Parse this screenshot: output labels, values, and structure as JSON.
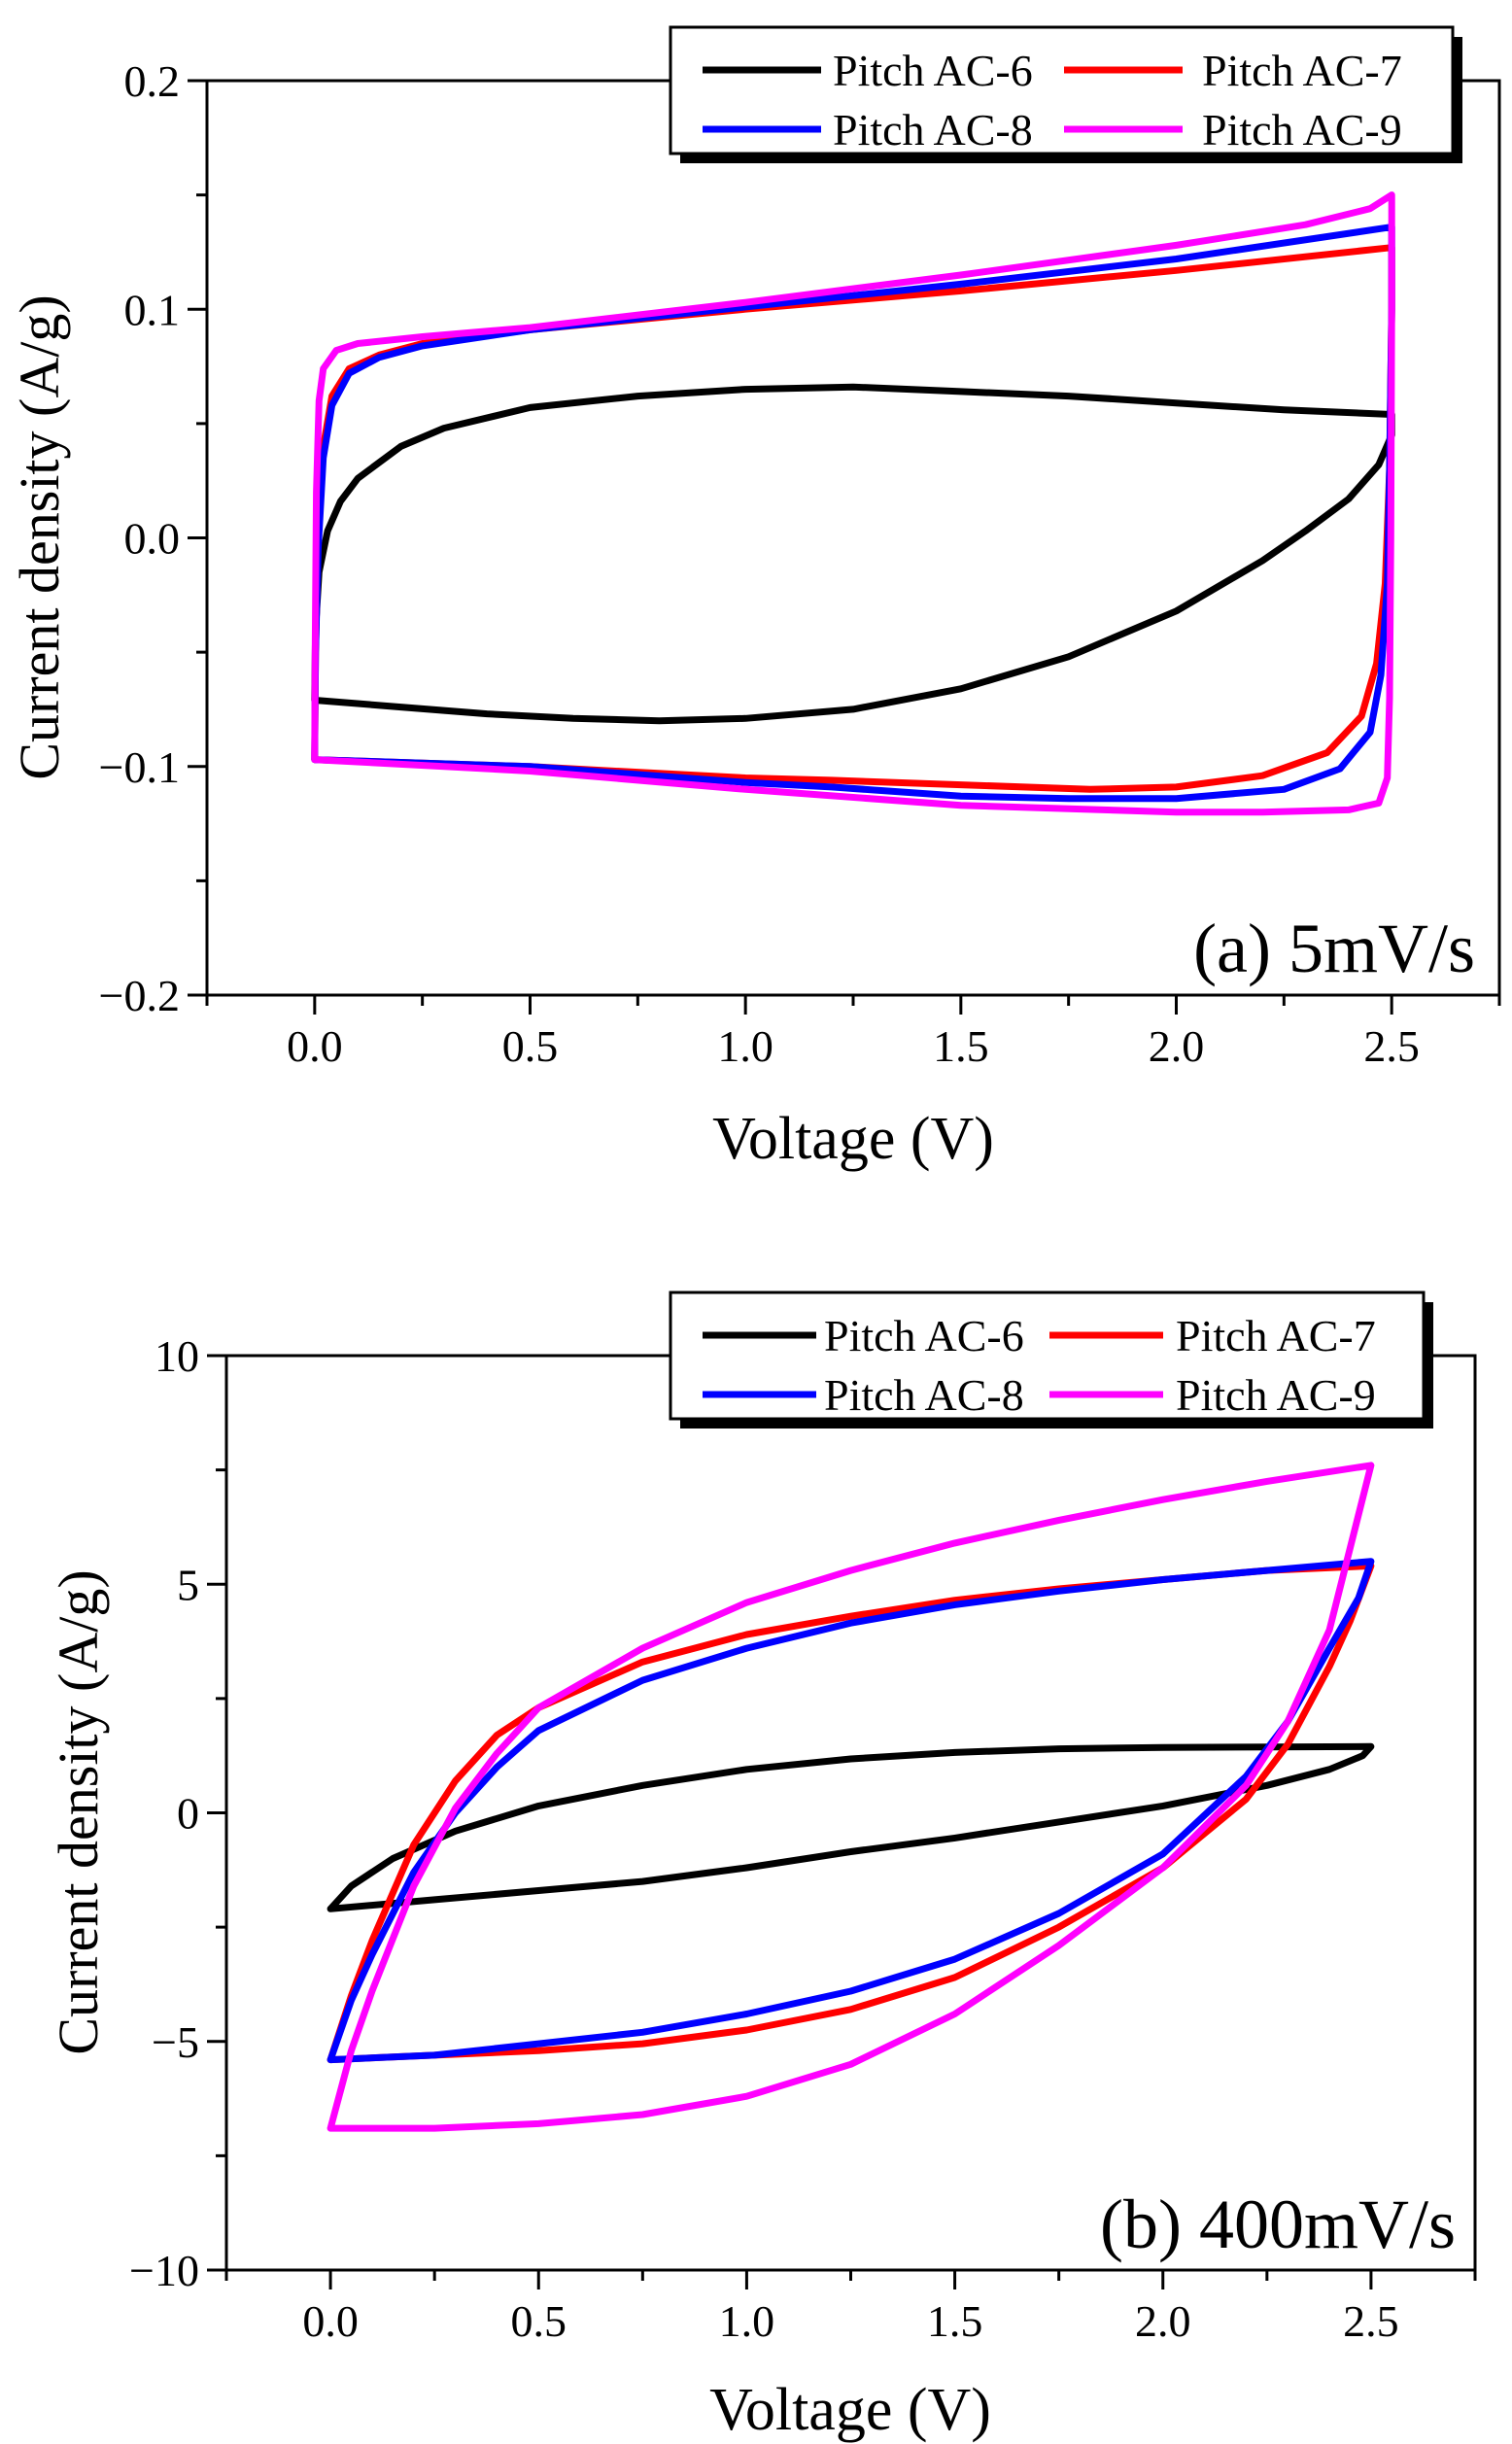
{
  "chart_data": [
    {
      "type": "line",
      "panel_label": "(a) 5mV/s",
      "xlabel": "Voltage (V)",
      "ylabel": "Current density (A/g)",
      "xlim": [
        -0.25,
        2.75
      ],
      "ylim": [
        -0.2,
        0.2
      ],
      "xticks": [
        0.0,
        0.5,
        1.0,
        1.5,
        2.0,
        2.5
      ],
      "xtick_labels": [
        "0.0",
        "0.5",
        "1.0",
        "1.5",
        "2.0",
        "2.5"
      ],
      "yticks": [
        -0.2,
        -0.1,
        0.0,
        0.1,
        0.2
      ],
      "ytick_labels": [
        "−0.2",
        "−0.1",
        "0.0",
        "0.1",
        "0.2"
      ],
      "legend": [
        "Pitch AC-6",
        "Pitch AC-7",
        "Pitch AC-8",
        "Pitch AC-9"
      ],
      "series": [
        {
          "name": "Pitch AC-6",
          "color": "#000000",
          "points": [
            [
              0.0,
              -0.071
            ],
            [
              0.002,
              -0.04
            ],
            [
              0.01,
              -0.015
            ],
            [
              0.03,
              0.003
            ],
            [
              0.06,
              0.016
            ],
            [
              0.1,
              0.026
            ],
            [
              0.2,
              0.04
            ],
            [
              0.3,
              0.048
            ],
            [
              0.5,
              0.057
            ],
            [
              0.75,
              0.062
            ],
            [
              1.0,
              0.065
            ],
            [
              1.25,
              0.066
            ],
            [
              1.5,
              0.064
            ],
            [
              1.75,
              0.062
            ],
            [
              2.0,
              0.059
            ],
            [
              2.25,
              0.056
            ],
            [
              2.5,
              0.054
            ],
            [
              2.5,
              0.045
            ],
            [
              2.47,
              0.032
            ],
            [
              2.4,
              0.017
            ],
            [
              2.3,
              0.003
            ],
            [
              2.2,
              -0.01
            ],
            [
              2.0,
              -0.032
            ],
            [
              1.75,
              -0.052
            ],
            [
              1.5,
              -0.066
            ],
            [
              1.25,
              -0.075
            ],
            [
              1.0,
              -0.079
            ],
            [
              0.8,
              -0.08
            ],
            [
              0.6,
              -0.079
            ],
            [
              0.4,
              -0.077
            ],
            [
              0.2,
              -0.074
            ],
            [
              0.0,
              -0.071
            ]
          ]
        },
        {
          "name": "Pitch AC-7",
          "color": "#ff0000",
          "points": [
            [
              0.0,
              -0.097
            ],
            [
              0.002,
              -0.05
            ],
            [
              0.008,
              0.0
            ],
            [
              0.02,
              0.04
            ],
            [
              0.04,
              0.062
            ],
            [
              0.08,
              0.074
            ],
            [
              0.15,
              0.08
            ],
            [
              0.25,
              0.085
            ],
            [
              0.5,
              0.091
            ],
            [
              1.0,
              0.1
            ],
            [
              1.5,
              0.108
            ],
            [
              2.0,
              0.117
            ],
            [
              2.5,
              0.127
            ],
            [
              2.5,
              0.1
            ],
            [
              2.495,
              0.03
            ],
            [
              2.485,
              -0.02
            ],
            [
              2.465,
              -0.055
            ],
            [
              2.43,
              -0.078
            ],
            [
              2.35,
              -0.094
            ],
            [
              2.2,
              -0.104
            ],
            [
              2.0,
              -0.109
            ],
            [
              1.8,
              -0.11
            ],
            [
              1.5,
              -0.108
            ],
            [
              1.2,
              -0.106
            ],
            [
              1.0,
              -0.105
            ],
            [
              0.5,
              -0.1
            ],
            [
              0.0,
              -0.097
            ]
          ]
        },
        {
          "name": "Pitch AC-8",
          "color": "#0000ff",
          "points": [
            [
              0.0,
              -0.097
            ],
            [
              0.002,
              -0.05
            ],
            [
              0.008,
              -0.005
            ],
            [
              0.02,
              0.035
            ],
            [
              0.04,
              0.058
            ],
            [
              0.08,
              0.072
            ],
            [
              0.15,
              0.079
            ],
            [
              0.25,
              0.084
            ],
            [
              0.5,
              0.091
            ],
            [
              1.0,
              0.101
            ],
            [
              1.5,
              0.111
            ],
            [
              2.0,
              0.122
            ],
            [
              2.5,
              0.136
            ],
            [
              2.5,
              0.1
            ],
            [
              2.495,
              0.03
            ],
            [
              2.49,
              -0.02
            ],
            [
              2.475,
              -0.06
            ],
            [
              2.45,
              -0.085
            ],
            [
              2.38,
              -0.101
            ],
            [
              2.25,
              -0.11
            ],
            [
              2.0,
              -0.114
            ],
            [
              1.75,
              -0.114
            ],
            [
              1.5,
              -0.113
            ],
            [
              1.2,
              -0.109
            ],
            [
              1.0,
              -0.107
            ],
            [
              0.5,
              -0.1
            ],
            [
              0.0,
              -0.097
            ]
          ]
        },
        {
          "name": "Pitch AC-9",
          "color": "#ff00ff",
          "points": [
            [
              0.0,
              -0.097
            ],
            [
              0.001,
              -0.05
            ],
            [
              0.004,
              0.02
            ],
            [
              0.01,
              0.06
            ],
            [
              0.02,
              0.074
            ],
            [
              0.05,
              0.082
            ],
            [
              0.1,
              0.085
            ],
            [
              0.25,
              0.088
            ],
            [
              0.5,
              0.092
            ],
            [
              1.0,
              0.103
            ],
            [
              1.5,
              0.115
            ],
            [
              2.0,
              0.128
            ],
            [
              2.3,
              0.137
            ],
            [
              2.45,
              0.144
            ],
            [
              2.5,
              0.15
            ],
            [
              2.5,
              0.1
            ],
            [
              2.498,
              0.0
            ],
            [
              2.495,
              -0.07
            ],
            [
              2.49,
              -0.105
            ],
            [
              2.47,
              -0.116
            ],
            [
              2.4,
              -0.119
            ],
            [
              2.2,
              -0.12
            ],
            [
              2.0,
              -0.12
            ],
            [
              1.5,
              -0.117
            ],
            [
              1.0,
              -0.11
            ],
            [
              0.5,
              -0.102
            ],
            [
              0.0,
              -0.097
            ]
          ]
        }
      ]
    },
    {
      "type": "line",
      "panel_label": "(b) 400mV/s",
      "xlabel": "Voltage (V)",
      "ylabel": "Current density (A/g)",
      "xlim": [
        -0.25,
        2.75
      ],
      "ylim": [
        -10,
        10
      ],
      "xticks": [
        0.0,
        0.5,
        1.0,
        1.5,
        2.0,
        2.5
      ],
      "xtick_labels": [
        "0.0",
        "0.5",
        "1.0",
        "1.5",
        "2.0",
        "2.5"
      ],
      "yticks": [
        -10,
        -5,
        0,
        5,
        10
      ],
      "ytick_labels": [
        "−10",
        "−5",
        "0",
        "5",
        "10"
      ],
      "legend": [
        "Pitch AC-6",
        "Pitch AC-7",
        "Pitch AC-8",
        "Pitch AC-9"
      ],
      "series": [
        {
          "name": "Pitch AC-6",
          "color": "#000000",
          "points": [
            [
              0.0,
              -2.1
            ],
            [
              0.05,
              -1.6
            ],
            [
              0.15,
              -1.0
            ],
            [
              0.3,
              -0.4
            ],
            [
              0.5,
              0.15
            ],
            [
              0.75,
              0.6
            ],
            [
              1.0,
              0.95
            ],
            [
              1.25,
              1.18
            ],
            [
              1.5,
              1.32
            ],
            [
              1.75,
              1.4
            ],
            [
              2.0,
              1.43
            ],
            [
              2.25,
              1.44
            ],
            [
              2.5,
              1.45
            ],
            [
              2.48,
              1.25
            ],
            [
              2.4,
              0.95
            ],
            [
              2.25,
              0.6
            ],
            [
              2.0,
              0.15
            ],
            [
              1.75,
              -0.2
            ],
            [
              1.5,
              -0.55
            ],
            [
              1.25,
              -0.85
            ],
            [
              1.0,
              -1.2
            ],
            [
              0.75,
              -1.5
            ],
            [
              0.5,
              -1.7
            ],
            [
              0.25,
              -1.9
            ],
            [
              0.0,
              -2.1
            ]
          ]
        },
        {
          "name": "Pitch AC-7",
          "color": "#ff0000",
          "points": [
            [
              0.0,
              -5.4
            ],
            [
              0.05,
              -4.0
            ],
            [
              0.1,
              -2.8
            ],
            [
              0.2,
              -0.7
            ],
            [
              0.3,
              0.7
            ],
            [
              0.4,
              1.7
            ],
            [
              0.5,
              2.3
            ],
            [
              0.75,
              3.3
            ],
            [
              1.0,
              3.9
            ],
            [
              1.25,
              4.3
            ],
            [
              1.5,
              4.65
            ],
            [
              1.75,
              4.9
            ],
            [
              2.0,
              5.1
            ],
            [
              2.25,
              5.3
            ],
            [
              2.5,
              5.4
            ],
            [
              2.45,
              4.2
            ],
            [
              2.4,
              3.2
            ],
            [
              2.3,
              1.5
            ],
            [
              2.2,
              0.3
            ],
            [
              2.0,
              -1.2
            ],
            [
              1.75,
              -2.5
            ],
            [
              1.5,
              -3.6
            ],
            [
              1.25,
              -4.3
            ],
            [
              1.0,
              -4.75
            ],
            [
              0.75,
              -5.05
            ],
            [
              0.5,
              -5.2
            ],
            [
              0.25,
              -5.3
            ],
            [
              0.0,
              -5.4
            ]
          ]
        },
        {
          "name": "Pitch AC-8",
          "color": "#0000ff",
          "points": [
            [
              0.0,
              -5.4
            ],
            [
              0.05,
              -4.1
            ],
            [
              0.1,
              -3.1
            ],
            [
              0.2,
              -1.3
            ],
            [
              0.3,
              0.0
            ],
            [
              0.4,
              1.0
            ],
            [
              0.5,
              1.8
            ],
            [
              0.75,
              2.9
            ],
            [
              1.0,
              3.6
            ],
            [
              1.25,
              4.15
            ],
            [
              1.5,
              4.55
            ],
            [
              1.75,
              4.85
            ],
            [
              2.0,
              5.1
            ],
            [
              2.25,
              5.3
            ],
            [
              2.5,
              5.5
            ],
            [
              2.47,
              4.7
            ],
            [
              2.4,
              3.6
            ],
            [
              2.3,
              2.0
            ],
            [
              2.2,
              0.8
            ],
            [
              2.0,
              -0.9
            ],
            [
              1.75,
              -2.2
            ],
            [
              1.5,
              -3.2
            ],
            [
              1.25,
              -3.9
            ],
            [
              1.0,
              -4.4
            ],
            [
              0.75,
              -4.8
            ],
            [
              0.5,
              -5.05
            ],
            [
              0.25,
              -5.3
            ],
            [
              0.0,
              -5.4
            ]
          ]
        },
        {
          "name": "Pitch AC-9",
          "color": "#ff00ff",
          "points": [
            [
              0.0,
              -6.9
            ],
            [
              0.05,
              -5.2
            ],
            [
              0.1,
              -3.9
            ],
            [
              0.2,
              -1.6
            ],
            [
              0.3,
              0.1
            ],
            [
              0.4,
              1.3
            ],
            [
              0.5,
              2.3
            ],
            [
              0.75,
              3.6
            ],
            [
              1.0,
              4.6
            ],
            [
              1.25,
              5.3
            ],
            [
              1.5,
              5.9
            ],
            [
              1.75,
              6.4
            ],
            [
              2.0,
              6.85
            ],
            [
              2.25,
              7.25
            ],
            [
              2.5,
              7.6
            ],
            [
              2.45,
              5.8
            ],
            [
              2.4,
              4.0
            ],
            [
              2.3,
              2.0
            ],
            [
              2.2,
              0.6
            ],
            [
              2.0,
              -1.2
            ],
            [
              1.75,
              -2.9
            ],
            [
              1.5,
              -4.4
            ],
            [
              1.25,
              -5.5
            ],
            [
              1.0,
              -6.2
            ],
            [
              0.75,
              -6.6
            ],
            [
              0.5,
              -6.8
            ],
            [
              0.25,
              -6.9
            ],
            [
              0.0,
              -6.9
            ]
          ]
        }
      ]
    }
  ]
}
